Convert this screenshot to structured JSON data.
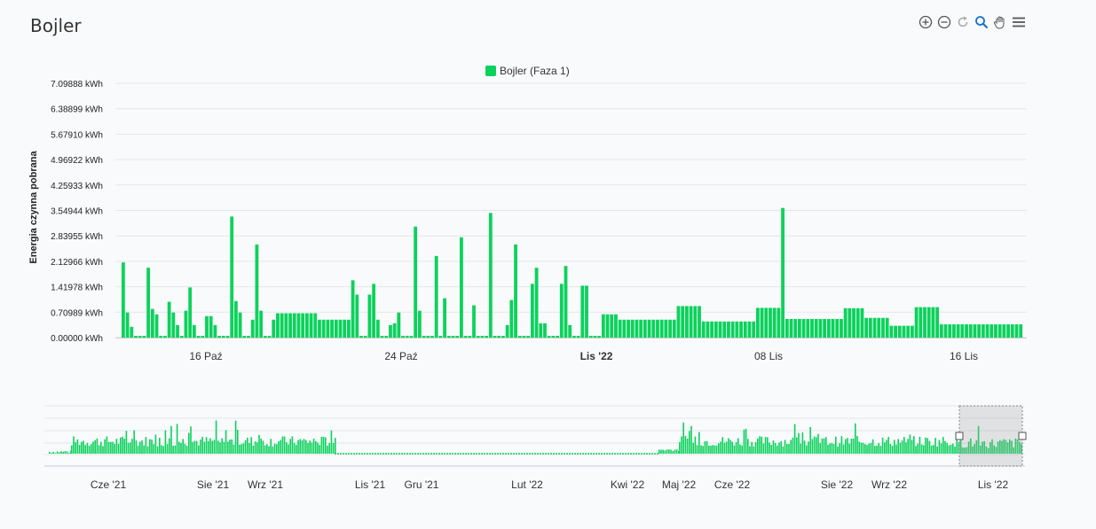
{
  "page": {
    "title": "Bojler"
  },
  "toolbar": {
    "buttons": [
      {
        "name": "zoom-in-icon"
      },
      {
        "name": "zoom-out-icon"
      },
      {
        "name": "reset-zoom-icon"
      },
      {
        "name": "selection-zoom-icon"
      },
      {
        "name": "pan-icon"
      },
      {
        "name": "menu-icon"
      }
    ]
  },
  "chart_data": {
    "type": "bar",
    "title": "Bojler",
    "ylabel": "Energia czynna pobrana",
    "series": [
      {
        "name": "Bojler (Faza 1)",
        "color": "#0bd25b"
      }
    ],
    "legend_position": "top",
    "ylim": [
      0,
      7.09888
    ],
    "y_ticks": [
      "7.09888 kWh",
      "6.38899 kWh",
      "5.67910 kWh",
      "4.96922 kWh",
      "4.25933 kWh",
      "3.54944 kWh",
      "2.83955 kWh",
      "2.12966 kWh",
      "1.41978 kWh",
      "0.70989 kWh",
      "0.00000 kWh"
    ],
    "x_ticks": [
      {
        "label": "16 Paź",
        "bold": false
      },
      {
        "label": "24 Paź",
        "bold": false
      },
      {
        "label": "Lis '22",
        "bold": true
      },
      {
        "label": "08 Lis",
        "bold": false
      },
      {
        "label": "16 Lis",
        "bold": false
      }
    ],
    "values": [
      2.1,
      0.7,
      0.3,
      0.05,
      0.05,
      0.05,
      1.95,
      0.8,
      0.65,
      0.05,
      0.05,
      1.0,
      0.7,
      0.35,
      0.05,
      0.75,
      1.4,
      0.35,
      0.05,
      0.05,
      0.6,
      0.6,
      0.35,
      0.05,
      0.05,
      0.05,
      3.38,
      1.02,
      0.7,
      0.05,
      0.05,
      0.5,
      2.6,
      0.75,
      0.05,
      0.05,
      0.5,
      0.68,
      0.68,
      0.68,
      0.68,
      0.68,
      0.68,
      0.68,
      0.68,
      0.68,
      0.68,
      0.5,
      0.5,
      0.5,
      0.5,
      0.5,
      0.5,
      0.5,
      0.5,
      1.6,
      1.2,
      0.05,
      0.05,
      1.2,
      1.5,
      0.5,
      0.05,
      0.05,
      0.35,
      0.4,
      0.7,
      0.05,
      0.05,
      0.05,
      3.1,
      0.75,
      0.05,
      0.05,
      0.05,
      2.28,
      0.05,
      1.1,
      0.05,
      0.05,
      0.05,
      2.8,
      0.05,
      0.05,
      0.9,
      0.05,
      0.05,
      0.05,
      3.48,
      0.05,
      0.05,
      0.05,
      0.35,
      1.05,
      2.6,
      0.05,
      0.05,
      0.05,
      1.5,
      1.95,
      0.4,
      0.4,
      0.05,
      0.05,
      0.05,
      1.5,
      2.0,
      0.35,
      0.05,
      0.05,
      1.45,
      1.45,
      0.05,
      0.05,
      0.05,
      0.65,
      0.65,
      0.65,
      0.65,
      0.5,
      0.5,
      0.5,
      0.5,
      0.5,
      0.5,
      0.5,
      0.5,
      0.5,
      0.5,
      0.5,
      0.5,
      0.5,
      0.5,
      0.88,
      0.88,
      0.88,
      0.88,
      0.88,
      0.88,
      0.45,
      0.45,
      0.45,
      0.45,
      0.45,
      0.45,
      0.45,
      0.45,
      0.45,
      0.45,
      0.45,
      0.45,
      0.45,
      0.83,
      0.83,
      0.83,
      0.83,
      0.83,
      0.83,
      3.62,
      0.52,
      0.52,
      0.52,
      0.52,
      0.52,
      0.52,
      0.52,
      0.52,
      0.52,
      0.52,
      0.52,
      0.52,
      0.52,
      0.52,
      0.82,
      0.82,
      0.82,
      0.82,
      0.82,
      0.55,
      0.55,
      0.55,
      0.55,
      0.55,
      0.55,
      0.33,
      0.33,
      0.33,
      0.33,
      0.33,
      0.33,
      0.85,
      0.85,
      0.85,
      0.85,
      0.85,
      0.85,
      0.37,
      0.37,
      0.37,
      0.37,
      0.37,
      0.37,
      0.37,
      0.37,
      0.37,
      0.37,
      0.37,
      0.37,
      0.37,
      0.37,
      0.37,
      0.37,
      0.37,
      0.37,
      0.37,
      0.37
    ],
    "navigator": {
      "x_ticks": [
        "Cze '21",
        "Sie '21",
        "Wrz '21",
        "Lis '21",
        "Gru '21",
        "Lut '22",
        "Kwi '22",
        "Maj '22",
        "Cze '22",
        "Sie '22",
        "Wrz '22",
        "Lis '22"
      ],
      "selection": "last range (Lis '22)"
    }
  }
}
